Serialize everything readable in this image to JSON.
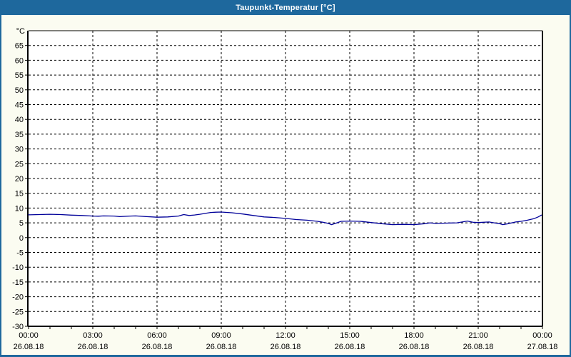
{
  "window": {
    "title": "Taupunkt-Temperatur [°C]"
  },
  "colors": {
    "titlebar_bg": "#1e689d",
    "titlebar_text": "#ffffff",
    "frame_border": "#1e689d",
    "content_bg": "#fbfcf1",
    "plot_bg": "#ffffff",
    "grid": "#000000",
    "axis": "#000000",
    "label_text": "#000000",
    "series_line": "#000099"
  },
  "chart_data": {
    "type": "line",
    "title": "Taupunkt-Temperatur [°C]",
    "xlabel": "",
    "ylabel": "°C",
    "ylim": [
      -30,
      70
    ],
    "y_tick_min": -30,
    "y_tick_max": 65,
    "y_tick_step": 5,
    "x_range_hours": [
      0,
      24
    ],
    "x_minor_tick_hours": 1,
    "grid": {
      "style": "dashed",
      "h_step_deg": 5,
      "v_step_hours": 3
    },
    "legend": "none",
    "x_major_ticks": [
      {
        "hour": 0,
        "time": "00:00",
        "date": "26.08.18"
      },
      {
        "hour": 3,
        "time": "03:00",
        "date": "26.08.18"
      },
      {
        "hour": 6,
        "time": "06:00",
        "date": "26.08.18"
      },
      {
        "hour": 9,
        "time": "09:00",
        "date": "26.08.18"
      },
      {
        "hour": 12,
        "time": "12:00",
        "date": "26.08.18"
      },
      {
        "hour": 15,
        "time": "15:00",
        "date": "26.08.18"
      },
      {
        "hour": 18,
        "time": "18:00",
        "date": "26.08.18"
      },
      {
        "hour": 21,
        "time": "21:00",
        "date": "26.08.18"
      },
      {
        "hour": 24,
        "time": "00:00",
        "date": "27.08.18"
      }
    ],
    "series": [
      {
        "name": "Taupunkt-Temperatur",
        "color": "#000099",
        "points": [
          [
            0,
            7.7
          ],
          [
            0.5,
            7.8
          ],
          [
            1,
            7.9
          ],
          [
            1.5,
            7.8
          ],
          [
            2,
            7.6
          ],
          [
            2.5,
            7.5
          ],
          [
            3,
            7.3
          ],
          [
            3.25,
            7.25
          ],
          [
            3.5,
            7.35
          ],
          [
            4,
            7.3
          ],
          [
            4.25,
            7.1
          ],
          [
            4.75,
            7.3
          ],
          [
            5,
            7.35
          ],
          [
            5.5,
            7.1
          ],
          [
            6,
            6.9
          ],
          [
            6.5,
            7.0
          ],
          [
            7,
            7.3
          ],
          [
            7.25,
            7.8
          ],
          [
            7.5,
            7.5
          ],
          [
            7.75,
            7.65
          ],
          [
            8,
            7.9
          ],
          [
            8.5,
            8.5
          ],
          [
            8.75,
            8.6
          ],
          [
            9,
            8.65
          ],
          [
            9.5,
            8.4
          ],
          [
            10,
            8.0
          ],
          [
            10.5,
            7.5
          ],
          [
            11,
            7.0
          ],
          [
            11.5,
            6.8
          ],
          [
            12,
            6.5
          ],
          [
            12.5,
            6.1
          ],
          [
            13,
            5.9
          ],
          [
            13.5,
            5.5
          ],
          [
            13.75,
            5.2
          ],
          [
            14,
            4.8
          ],
          [
            14.15,
            4.4
          ],
          [
            14.4,
            5.0
          ],
          [
            14.6,
            5.5
          ],
          [
            15,
            5.6
          ],
          [
            15.5,
            5.5
          ],
          [
            16,
            5.1
          ],
          [
            16.5,
            4.7
          ],
          [
            17,
            4.4
          ],
          [
            17.5,
            4.5
          ],
          [
            18,
            4.4
          ],
          [
            18.5,
            4.7
          ],
          [
            18.75,
            5.0
          ],
          [
            19,
            4.8
          ],
          [
            19.5,
            4.9
          ],
          [
            20,
            5.0
          ],
          [
            20.25,
            5.3
          ],
          [
            20.5,
            5.6
          ],
          [
            20.75,
            5.2
          ],
          [
            21,
            5.1
          ],
          [
            21.5,
            5.3
          ],
          [
            21.75,
            5.0
          ],
          [
            22,
            4.7
          ],
          [
            22.15,
            4.4
          ],
          [
            22.4,
            4.7
          ],
          [
            22.75,
            5.3
          ],
          [
            23,
            5.5
          ],
          [
            23.3,
            5.9
          ],
          [
            23.6,
            6.4
          ],
          [
            23.8,
            7.0
          ],
          [
            23.95,
            7.6
          ]
        ]
      }
    ]
  }
}
